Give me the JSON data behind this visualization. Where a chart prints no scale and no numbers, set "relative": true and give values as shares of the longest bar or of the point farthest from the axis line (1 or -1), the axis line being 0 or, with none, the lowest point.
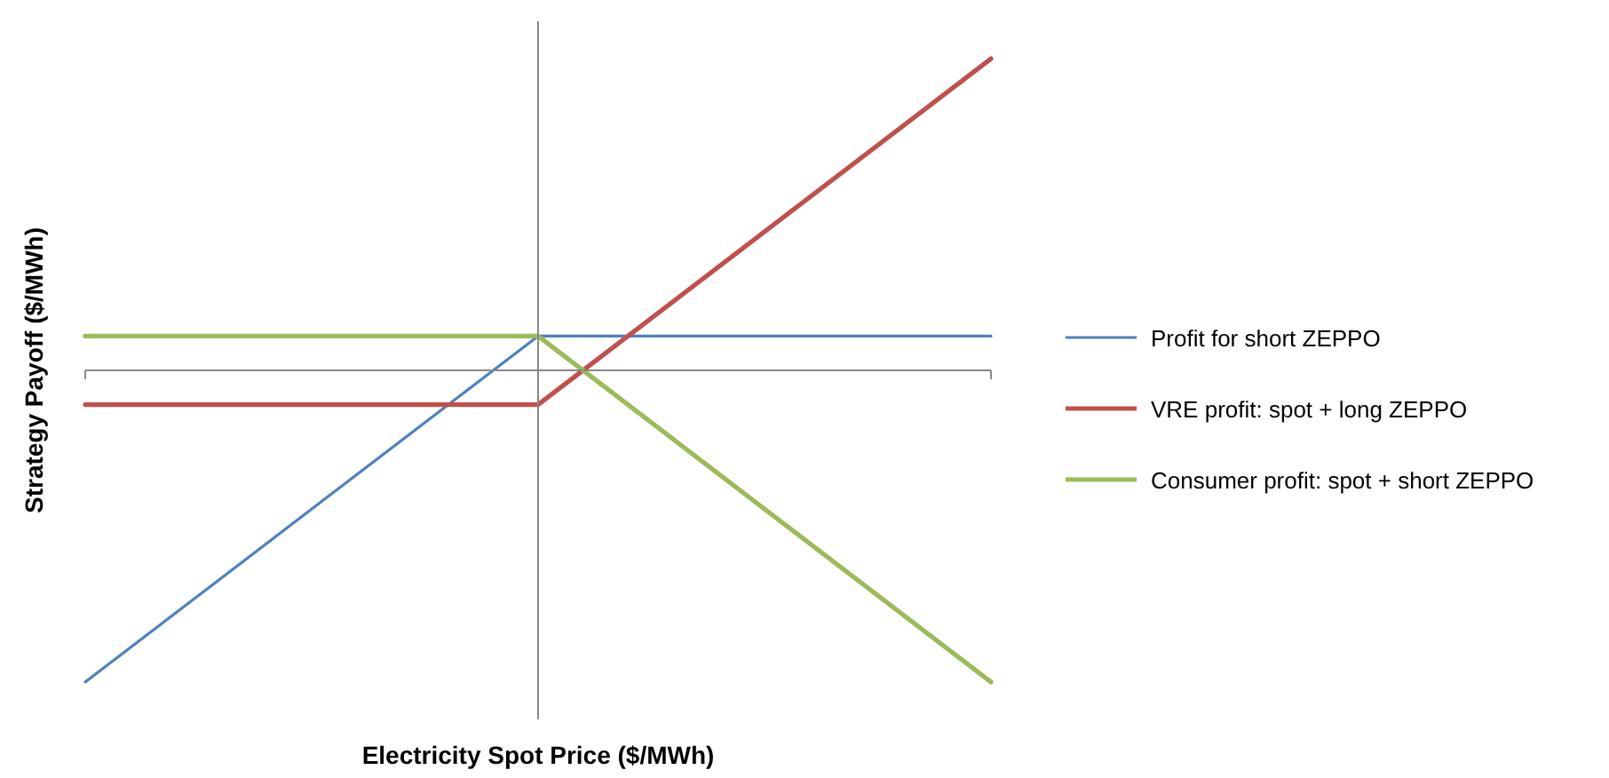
{
  "chart_data": {
    "type": "line",
    "relative": true,
    "xlabel": "Electricity Spot Price ($/MWh)",
    "ylabel": "Strategy Payoff ($/MWh)",
    "categories": [
      null,
      null,
      null
    ],
    "legend": "right",
    "marker": "none",
    "line_style": "solid",
    "grid": false,
    "series": [
      {
        "name": "Profit for short ZEPPO",
        "color": "#4f81bd",
        "values": [
          -1,
          0.11,
          0.11
        ]
      },
      {
        "name": "VRE profit: spot + long ZEPPO",
        "color": "#c0504d",
        "values": [
          -0.11,
          -0.11,
          1
        ]
      },
      {
        "name": "Consumer profit: spot + short ZEPPO",
        "color": "#9bbb59",
        "values": [
          0.11,
          0.11,
          -1
        ]
      }
    ]
  }
}
